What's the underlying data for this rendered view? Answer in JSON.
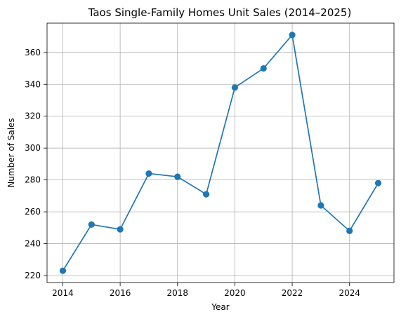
{
  "chart_data": {
    "type": "line",
    "title": "Taos Single-Family Homes Unit Sales (2014–2025)",
    "xlabel": "Year",
    "ylabel": "Number of Sales",
    "x": [
      2014,
      2015,
      2016,
      2017,
      2018,
      2019,
      2020,
      2021,
      2022,
      2023,
      2024,
      2025
    ],
    "series": [
      {
        "values": [
          223,
          252,
          249,
          284,
          282,
          271,
          338,
          350,
          371,
          264,
          248,
          278
        ]
      }
    ],
    "xlim": [
      2013.45,
      2025.55
    ],
    "ylim": [
      215.6,
      378.4
    ],
    "xticks": [
      2014,
      2016,
      2018,
      2020,
      2022,
      2024
    ],
    "yticks": [
      220,
      240,
      260,
      280,
      300,
      320,
      340,
      360
    ],
    "grid": true,
    "line_color": "#1f77b4",
    "marker_color": "#1f77b4"
  }
}
